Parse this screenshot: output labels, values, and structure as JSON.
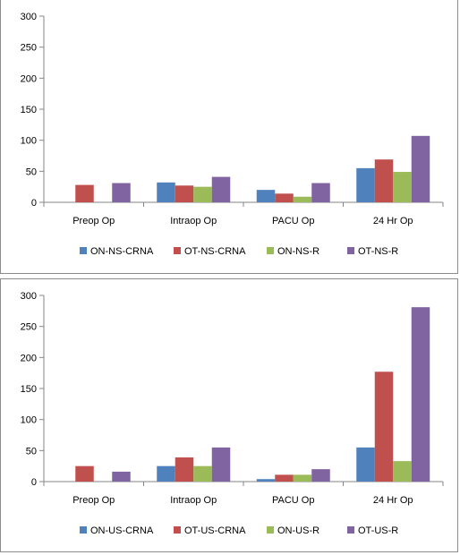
{
  "chart_data": [
    {
      "type": "bar",
      "title": "",
      "xlabel": "",
      "ylabel": "",
      "categories": [
        "Preop Op",
        "Intraop Op",
        "PACU Op",
        "24 Hr Op"
      ],
      "ylim": [
        0,
        300
      ],
      "yticks": [
        0,
        50,
        100,
        150,
        200,
        250,
        300
      ],
      "grid": false,
      "legend": "bottom",
      "series": [
        {
          "name": "ON-NS-CRNA",
          "color": "#4f81bd",
          "values": [
            0,
            32,
            20,
            55
          ]
        },
        {
          "name": "OT-NS-CRNA",
          "color": "#c0504d",
          "values": [
            28,
            27,
            14,
            69
          ]
        },
        {
          "name": "ON-NS-R",
          "color": "#9bbb59",
          "values": [
            0,
            25,
            9,
            49
          ]
        },
        {
          "name": "OT-NS-R",
          "color": "#8064a2",
          "values": [
            31,
            41,
            31,
            107
          ]
        }
      ]
    },
    {
      "type": "bar",
      "title": "",
      "xlabel": "",
      "ylabel": "",
      "categories": [
        "Preop Op",
        "Intraop Op",
        "PACU Op",
        "24 Hr Op"
      ],
      "ylim": [
        0,
        300
      ],
      "yticks": [
        0,
        50,
        100,
        150,
        200,
        250,
        300
      ],
      "grid": false,
      "legend": "bottom",
      "series": [
        {
          "name": "ON-US-CRNA",
          "color": "#4f81bd",
          "values": [
            0,
            25,
            4,
            55
          ]
        },
        {
          "name": "OT-US-CRNA",
          "color": "#c0504d",
          "values": [
            25,
            39,
            11,
            177
          ]
        },
        {
          "name": "ON-US-R",
          "color": "#9bbb59",
          "values": [
            0,
            25,
            11,
            33
          ]
        },
        {
          "name": "OT-US-R",
          "color": "#8064a2",
          "values": [
            16,
            55,
            20,
            281
          ]
        }
      ]
    }
  ]
}
